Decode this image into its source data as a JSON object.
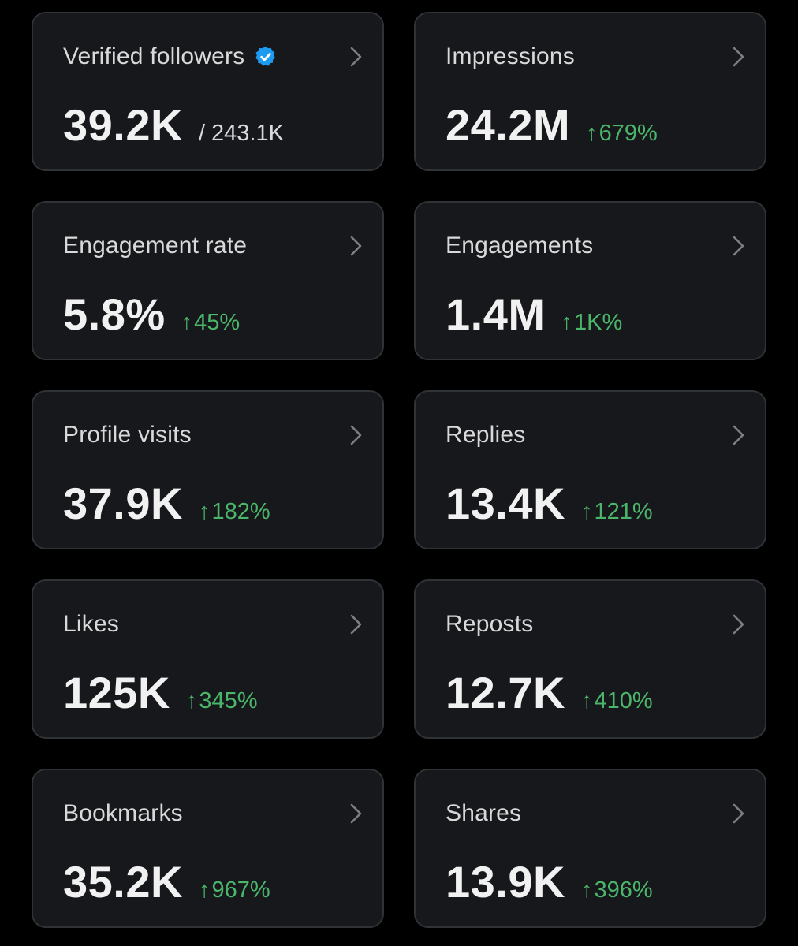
{
  "colors": {
    "background": "#000000",
    "card_background": "#16181c",
    "card_border": "#2f3336",
    "label": "#d9d9d9",
    "value": "#f1f1f1",
    "positive_change": "#4bb66a",
    "verified_badge": "#1d9bf0"
  },
  "icons": {
    "verified": "verified-badge-icon",
    "chevron": "chevron-right-icon",
    "up_arrow": "↑"
  },
  "cards": [
    {
      "label": "Verified followers",
      "value": "39.2K",
      "secondary": "/ 243.1K"
    },
    {
      "label": "Impressions",
      "value": "24.2M",
      "change": "679%"
    },
    {
      "label": "Engagement rate",
      "value": "5.8%",
      "change": "45%"
    },
    {
      "label": "Engagements",
      "value": "1.4M",
      "change": "1K%"
    },
    {
      "label": "Profile visits",
      "value": "37.9K",
      "change": "182%"
    },
    {
      "label": "Replies",
      "value": "13.4K",
      "change": "121%"
    },
    {
      "label": "Likes",
      "value": "125K",
      "change": "345%"
    },
    {
      "label": "Reposts",
      "value": "12.7K",
      "change": "410%"
    },
    {
      "label": "Bookmarks",
      "value": "35.2K",
      "change": "967%"
    },
    {
      "label": "Shares",
      "value": "13.9K",
      "change": "396%"
    }
  ]
}
